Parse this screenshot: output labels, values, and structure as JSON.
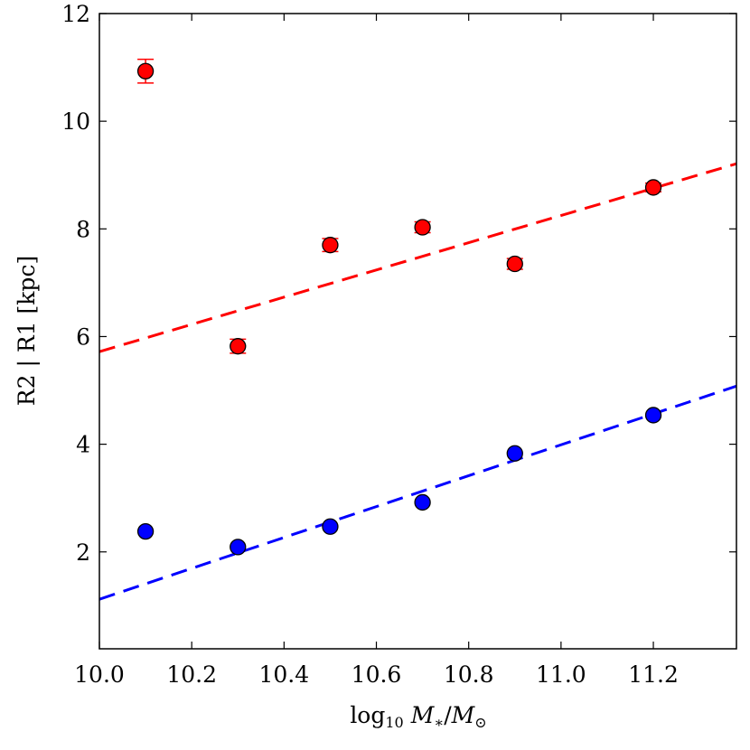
{
  "chart_data": {
    "type": "scatter",
    "title": "",
    "xlabel": "log₁₀ M∗/M⊙",
    "xlabel_parts": {
      "log": "log",
      "sub": "10",
      "m": "M",
      "star": "∗",
      "slash": "/",
      "m2": "M",
      "sun": "⊙"
    },
    "ylabel": "R2 | R1 [kpc]",
    "xlim": [
      10.0,
      11.38
    ],
    "ylim": [
      0.2,
      12.0
    ],
    "xticks": [
      10.0,
      10.2,
      10.4,
      10.6,
      10.8,
      11.0,
      11.2
    ],
    "xtick_labels": [
      "10.0",
      "10.2",
      "10.4",
      "10.6",
      "10.8",
      "11.0",
      "11.2"
    ],
    "yticks": [
      2,
      4,
      6,
      8,
      10,
      12
    ],
    "ytick_labels": [
      "2",
      "4",
      "6",
      "8",
      "10",
      "12"
    ],
    "grid": false,
    "series": [
      {
        "name": "R2",
        "color": "#ff0000",
        "x": [
          10.1,
          10.3,
          10.5,
          10.7,
          10.9,
          11.2
        ],
        "y": [
          10.93,
          5.82,
          7.7,
          8.03,
          7.35,
          8.77
        ],
        "yerr": [
          0.22,
          0.13,
          0.12,
          0.1,
          0.1,
          0.08
        ],
        "fit": {
          "x0": 10.0,
          "y0": 5.72,
          "x1": 11.38,
          "y1": 9.21
        }
      },
      {
        "name": "R1",
        "color": "#0000ff",
        "x": [
          10.1,
          10.3,
          10.5,
          10.7,
          10.9,
          11.2
        ],
        "y": [
          2.38,
          2.09,
          2.47,
          2.92,
          3.83,
          4.54
        ],
        "yerr": [
          0.0,
          0.0,
          0.0,
          0.0,
          0.0,
          0.0
        ],
        "fit": {
          "x0": 10.0,
          "y0": 1.12,
          "x1": 11.38,
          "y1": 5.08
        }
      }
    ]
  }
}
